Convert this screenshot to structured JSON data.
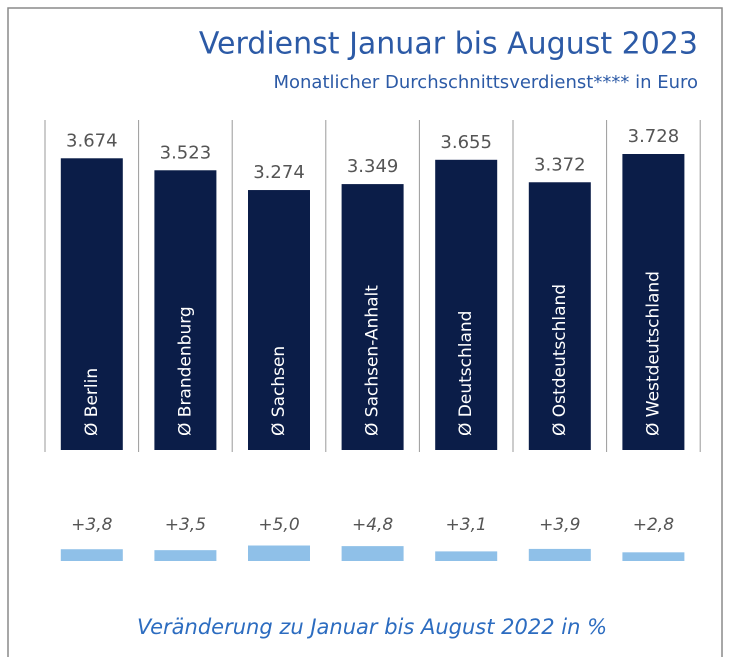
{
  "chart_data": [
    {
      "type": "bar",
      "title": "Verdienst Januar bis August 2023",
      "subtitle": "Monatlicher Durchschnittsverdienst**** in Euro",
      "categories": [
        "Ø Berlin",
        "Ø Brandenburg",
        "Ø Sachsen",
        "Ø Sachsen-Anhalt",
        "Ø Deutschland",
        "Ø Ostdeutschland",
        "Ø Westdeutschland"
      ],
      "values": [
        3674,
        3523,
        3274,
        3349,
        3655,
        3372,
        3728
      ],
      "value_labels": [
        "3.674",
        "3.523",
        "3.274",
        "3.349",
        "3.655",
        "3.372",
        "3.728"
      ],
      "color": "#0b1d48"
    },
    {
      "type": "bar",
      "xlabel": "Veränderung zu Januar bis August 2022 in %",
      "values": [
        3.8,
        3.5,
        5.0,
        4.8,
        3.1,
        3.9,
        2.8
      ],
      "value_labels": [
        "+3,8",
        "+3,5",
        "+5,0",
        "+4,8",
        "+3,1",
        "+3,9",
        "+2,8"
      ],
      "color": "#8fc0e8"
    }
  ]
}
